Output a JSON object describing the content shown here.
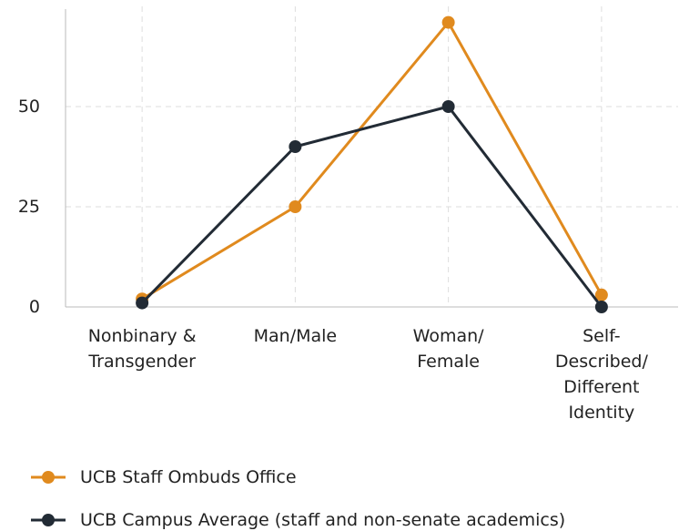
{
  "chart_data": {
    "type": "line",
    "categories": [
      "Nonbinary &\nTransgender",
      "Man/Male",
      "Woman/\nFemale",
      "Self-\nDescribed/\nDifferent\nIdentity"
    ],
    "series": [
      {
        "name": "UCB Staff Ombuds Office",
        "color": "#e08a1e",
        "values": [
          2,
          25,
          71,
          3
        ]
      },
      {
        "name": "UCB Campus Average (staff and non-senate academics)",
        "color": "#222b35",
        "values": [
          1,
          40,
          50,
          0
        ]
      }
    ],
    "ylim": [
      0,
      75
    ],
    "yticks": [
      0,
      25,
      50
    ],
    "grid": true,
    "legend": "bottom"
  }
}
